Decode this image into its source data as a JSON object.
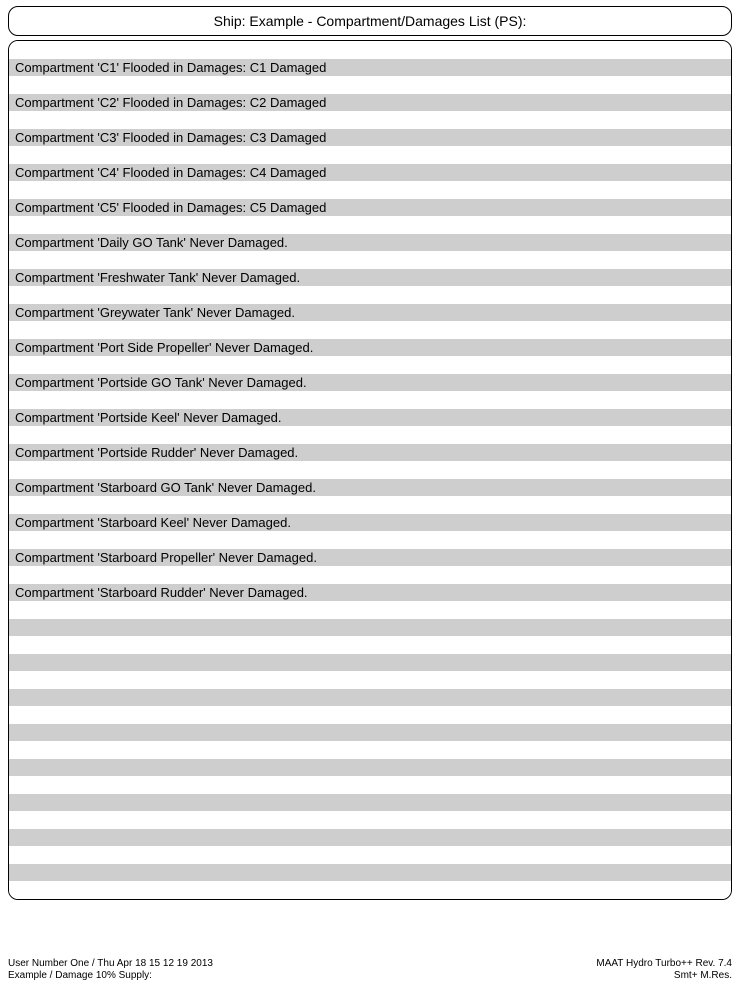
{
  "header": {
    "title": "Ship: Example - Compartment/Damages List (PS):"
  },
  "list": {
    "total_rows": 49,
    "row_height": 17.5,
    "shaded_color": "#cecece",
    "white_color": "#ffffff",
    "items": [
      {
        "index": 0,
        "text": ""
      },
      {
        "index": 1,
        "text": "Compartment 'C1' Flooded in Damages:  C1 Damaged"
      },
      {
        "index": 2,
        "text": ""
      },
      {
        "index": 3,
        "text": "Compartment 'C2' Flooded in Damages:  C2 Damaged"
      },
      {
        "index": 4,
        "text": ""
      },
      {
        "index": 5,
        "text": "Compartment 'C3' Flooded in Damages:  C3 Damaged"
      },
      {
        "index": 6,
        "text": ""
      },
      {
        "index": 7,
        "text": "Compartment 'C4' Flooded in Damages:  C4 Damaged"
      },
      {
        "index": 8,
        "text": ""
      },
      {
        "index": 9,
        "text": "Compartment 'C5' Flooded in Damages:  C5 Damaged"
      },
      {
        "index": 10,
        "text": ""
      },
      {
        "index": 11,
        "text": "Compartment 'Daily GO Tank' Never Damaged."
      },
      {
        "index": 12,
        "text": ""
      },
      {
        "index": 13,
        "text": "Compartment 'Freshwater Tank' Never Damaged."
      },
      {
        "index": 14,
        "text": ""
      },
      {
        "index": 15,
        "text": "Compartment 'Greywater Tank' Never Damaged."
      },
      {
        "index": 16,
        "text": ""
      },
      {
        "index": 17,
        "text": "Compartment 'Port Side Propeller' Never Damaged."
      },
      {
        "index": 18,
        "text": ""
      },
      {
        "index": 19,
        "text": "Compartment 'Portside GO Tank' Never Damaged."
      },
      {
        "index": 20,
        "text": ""
      },
      {
        "index": 21,
        "text": "Compartment 'Portside Keel' Never Damaged."
      },
      {
        "index": 22,
        "text": ""
      },
      {
        "index": 23,
        "text": "Compartment 'Portside Rudder' Never Damaged."
      },
      {
        "index": 24,
        "text": ""
      },
      {
        "index": 25,
        "text": "Compartment 'Starboard GO Tank' Never Damaged."
      },
      {
        "index": 26,
        "text": ""
      },
      {
        "index": 27,
        "text": "Compartment 'Starboard Keel' Never Damaged."
      },
      {
        "index": 28,
        "text": ""
      },
      {
        "index": 29,
        "text": "Compartment 'Starboard Propeller' Never Damaged."
      },
      {
        "index": 30,
        "text": ""
      },
      {
        "index": 31,
        "text": "Compartment 'Starboard Rudder' Never Damaged."
      },
      {
        "index": 32,
        "text": ""
      },
      {
        "index": 33,
        "text": ""
      },
      {
        "index": 34,
        "text": ""
      },
      {
        "index": 35,
        "text": ""
      },
      {
        "index": 36,
        "text": ""
      },
      {
        "index": 37,
        "text": ""
      },
      {
        "index": 38,
        "text": ""
      },
      {
        "index": 39,
        "text": ""
      },
      {
        "index": 40,
        "text": ""
      },
      {
        "index": 41,
        "text": ""
      },
      {
        "index": 42,
        "text": ""
      },
      {
        "index": 43,
        "text": ""
      },
      {
        "index": 44,
        "text": ""
      },
      {
        "index": 45,
        "text": ""
      },
      {
        "index": 46,
        "text": ""
      },
      {
        "index": 47,
        "text": ""
      },
      {
        "index": 48,
        "text": ""
      }
    ]
  },
  "footer": {
    "left_line1": "User Number One / Thu Apr 18 15 12 19 2013",
    "left_line2": "Example / Damage 10% Supply:",
    "right_line1": "MAAT Hydro Turbo++ Rev. 7.4",
    "right_line2": "Smt+ M.Res."
  }
}
